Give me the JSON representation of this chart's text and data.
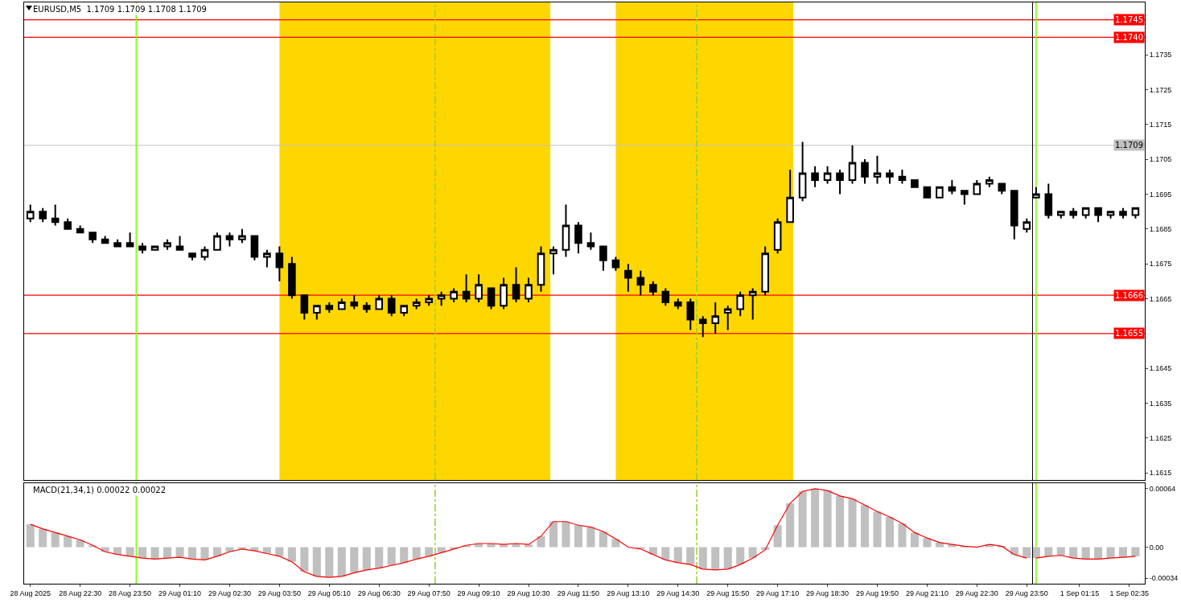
{
  "chart_data": [
    {
      "type": "candlestick",
      "title": "EURUSD,M5  1.1709 1.1709 1.1708 1.1709",
      "color": "#000000",
      "x": [
        "2025-08-28T21:10",
        "2025-08-28T21:30",
        "2025-08-28T21:50",
        "2025-08-28T22:10",
        "2025-08-28T22:30",
        "2025-08-28T22:50",
        "2025-08-28T23:10",
        "2025-08-28T23:30",
        "2025-08-28T23:50",
        "2025-08-29T00:10",
        "2025-08-29T00:30",
        "2025-08-29T00:50",
        "2025-08-29T01:10",
        "2025-08-29T01:30",
        "2025-08-29T01:50",
        "2025-08-29T02:10",
        "2025-08-29T02:30",
        "2025-08-29T02:50",
        "2025-08-29T03:10",
        "2025-08-29T03:30",
        "2025-08-29T03:50",
        "2025-08-29T04:10",
        "2025-08-29T04:30",
        "2025-08-29T04:50",
        "2025-08-29T05:10",
        "2025-08-29T05:30",
        "2025-08-29T05:50",
        "2025-08-29T06:10",
        "2025-08-29T06:30",
        "2025-08-29T06:50",
        "2025-08-29T07:10",
        "2025-08-29T07:30",
        "2025-08-29T07:50",
        "2025-08-29T08:10",
        "2025-08-29T08:30",
        "2025-08-29T08:50",
        "2025-08-29T09:10",
        "2025-08-29T09:30",
        "2025-08-29T09:50",
        "2025-08-29T10:10",
        "2025-08-29T10:30",
        "2025-08-29T10:50",
        "2025-08-29T11:10",
        "2025-08-29T11:30",
        "2025-08-29T11:50",
        "2025-08-29T12:10",
        "2025-08-29T12:30",
        "2025-08-29T12:50",
        "2025-08-29T13:10",
        "2025-08-29T13:30",
        "2025-08-29T13:50",
        "2025-08-29T14:10",
        "2025-08-29T14:30",
        "2025-08-29T14:50",
        "2025-08-29T15:10",
        "2025-08-29T15:30",
        "2025-08-29T15:50",
        "2025-08-29T16:10",
        "2025-08-29T16:30",
        "2025-08-29T16:50",
        "2025-08-29T17:10",
        "2025-08-29T17:30",
        "2025-08-29T17:50",
        "2025-08-29T18:10",
        "2025-08-29T18:30",
        "2025-08-29T18:50",
        "2025-08-29T19:10",
        "2025-08-29T19:30",
        "2025-08-29T19:50",
        "2025-08-29T20:10",
        "2025-08-29T20:30",
        "2025-08-29T20:50",
        "2025-08-29T21:10",
        "2025-08-29T21:30",
        "2025-08-29T21:50",
        "2025-08-29T22:10",
        "2025-08-29T22:30",
        "2025-08-29T22:50",
        "2025-08-29T23:10",
        "2025-08-29T23:30",
        "2025-08-29T23:50"
      ],
      "ohlc": [
        [
          1.1688,
          1.1692,
          1.1687,
          1.169
        ],
        [
          1.169,
          1.1691,
          1.1687,
          1.1688
        ],
        [
          1.1688,
          1.1692,
          1.1686,
          1.1687
        ],
        [
          1.1687,
          1.1688,
          1.1685,
          1.1685
        ],
        [
          1.1685,
          1.1686,
          1.1684,
          1.1684
        ],
        [
          1.1684,
          1.1684,
          1.1681,
          1.1682
        ],
        [
          1.1682,
          1.1683,
          1.1681,
          1.1681
        ],
        [
          1.1681,
          1.1682,
          1.168,
          1.168
        ],
        [
          1.1681,
          1.1684,
          1.168,
          1.168
        ],
        [
          1.168,
          1.1681,
          1.1678,
          1.1679
        ],
        [
          1.1679,
          1.168,
          1.1679,
          1.168
        ],
        [
          1.168,
          1.1682,
          1.1679,
          1.1681
        ],
        [
          1.168,
          1.1683,
          1.1679,
          1.1679
        ],
        [
          1.1678,
          1.1678,
          1.1676,
          1.1677
        ],
        [
          1.1677,
          1.168,
          1.1676,
          1.1679
        ],
        [
          1.1679,
          1.1684,
          1.1679,
          1.1683
        ],
        [
          1.1683,
          1.1684,
          1.168,
          1.1682
        ],
        [
          1.1682,
          1.1685,
          1.1681,
          1.1683
        ],
        [
          1.1683,
          1.1683,
          1.1676,
          1.1677
        ],
        [
          1.1677,
          1.1679,
          1.1674,
          1.1678
        ],
        [
          1.1678,
          1.168,
          1.167,
          1.1674
        ],
        [
          1.1675,
          1.1677,
          1.1665,
          1.1666
        ],
        [
          1.1666,
          1.1666,
          1.1659,
          1.1661
        ],
        [
          1.1661,
          1.1663,
          1.1659,
          1.1663
        ],
        [
          1.1663,
          1.1664,
          1.1661,
          1.1662
        ],
        [
          1.1662,
          1.1665,
          1.1662,
          1.1664
        ],
        [
          1.1664,
          1.1666,
          1.1662,
          1.1663
        ],
        [
          1.1663,
          1.1664,
          1.1661,
          1.1662
        ],
        [
          1.1662,
          1.1666,
          1.1662,
          1.1665
        ],
        [
          1.1665,
          1.1666,
          1.166,
          1.1661
        ],
        [
          1.1661,
          1.1663,
          1.166,
          1.1663
        ],
        [
          1.1663,
          1.1665,
          1.1662,
          1.1664
        ],
        [
          1.1664,
          1.1666,
          1.1663,
          1.1665
        ],
        [
          1.1665,
          1.1667,
          1.1663,
          1.1666
        ],
        [
          1.1665,
          1.1668,
          1.1664,
          1.1667
        ],
        [
          1.1667,
          1.1672,
          1.1664,
          1.1665
        ],
        [
          1.1665,
          1.1672,
          1.1664,
          1.1669
        ],
        [
          1.1668,
          1.1668,
          1.1662,
          1.1663
        ],
        [
          1.1663,
          1.1671,
          1.1662,
          1.1669
        ],
        [
          1.1669,
          1.1674,
          1.1664,
          1.1665
        ],
        [
          1.1665,
          1.1671,
          1.1664,
          1.1669
        ],
        [
          1.1669,
          1.168,
          1.1667,
          1.1678
        ],
        [
          1.1678,
          1.168,
          1.1672,
          1.1679
        ],
        [
          1.1679,
          1.1692,
          1.1677,
          1.1686
        ],
        [
          1.1686,
          1.1687,
          1.1678,
          1.1681
        ],
        [
          1.1681,
          1.1684,
          1.1679,
          1.168
        ],
        [
          1.168,
          1.168,
          1.1673,
          1.1676
        ],
        [
          1.1676,
          1.1677,
          1.1673,
          1.1674
        ],
        [
          1.1673,
          1.1675,
          1.1667,
          1.1671
        ],
        [
          1.1671,
          1.1673,
          1.1666,
          1.1669
        ],
        [
          1.1669,
          1.167,
          1.1666,
          1.1667
        ],
        [
          1.1667,
          1.1668,
          1.1663,
          1.1664
        ],
        [
          1.1664,
          1.1665,
          1.1662,
          1.1663
        ],
        [
          1.1664,
          1.1665,
          1.1656,
          1.1659
        ],
        [
          1.1659,
          1.166,
          1.1654,
          1.1658
        ],
        [
          1.1658,
          1.1664,
          1.1655,
          1.166
        ],
        [
          1.1661,
          1.1663,
          1.1656,
          1.1662
        ],
        [
          1.1662,
          1.1667,
          1.166,
          1.1666
        ],
        [
          1.1666,
          1.1668,
          1.1659,
          1.1667
        ],
        [
          1.1667,
          1.168,
          1.1666,
          1.1678
        ],
        [
          1.1679,
          1.1688,
          1.1678,
          1.1687
        ],
        [
          1.1687,
          1.1702,
          1.1687,
          1.1694
        ],
        [
          1.1694,
          1.171,
          1.1693,
          1.1701
        ],
        [
          1.1701,
          1.1703,
          1.1697,
          1.1699
        ],
        [
          1.1699,
          1.1703,
          1.1698,
          1.1701
        ],
        [
          1.1701,
          1.1702,
          1.1695,
          1.1699
        ],
        [
          1.1699,
          1.1709,
          1.1698,
          1.1704
        ],
        [
          1.1704,
          1.1705,
          1.1698,
          1.17
        ],
        [
          1.17,
          1.1706,
          1.1698,
          1.1701
        ],
        [
          1.1701,
          1.1702,
          1.1698,
          1.17
        ],
        [
          1.17,
          1.1702,
          1.1698,
          1.1699
        ],
        [
          1.1699,
          1.1699,
          1.1697,
          1.1697
        ],
        [
          1.1697,
          1.1697,
          1.1694,
          1.1694
        ],
        [
          1.1694,
          1.1697,
          1.1694,
          1.1697
        ],
        [
          1.1697,
          1.1699,
          1.1695,
          1.1696
        ],
        [
          1.1696,
          1.1696,
          1.1692,
          1.1695
        ],
        [
          1.1695,
          1.1699,
          1.1695,
          1.1698
        ],
        [
          1.1698,
          1.17,
          1.1697,
          1.1699
        ],
        [
          1.1698,
          1.1698,
          1.1695,
          1.1696
        ],
        [
          1.1696,
          1.1696,
          1.1682,
          1.1686
        ],
        [
          1.1685,
          1.1688,
          1.1684,
          1.1687
        ]
      ],
      "xlim": [
        "2025-08-28T21:00",
        "2025-08-30T00:00"
      ],
      "ylim": [
        1.1613,
        1.175
      ],
      "tick_labels": false,
      "ref_lines": [
        {
          "axis": "y",
          "value": 1.1745,
          "color": "#ff0000"
        },
        {
          "axis": "y",
          "value": 1.174,
          "color": "#ff0000"
        },
        {
          "axis": "y",
          "value": 1.1709,
          "color": "#c0c0c0"
        },
        {
          "axis": "y",
          "value": 1.1666,
          "color": "#ff0000"
        },
        {
          "axis": "y",
          "value": 1.1655,
          "color": "#ff0000"
        },
        {
          "axis": "x",
          "value": "2025-08-29T00:00",
          "color": "#7cfc00",
          "line_style": "solid"
        },
        {
          "axis": "x",
          "value": "2025-08-29T08:00",
          "color": "#9acd32",
          "line_style": "dashed"
        },
        {
          "axis": "x",
          "value": "2025-08-29T15:00",
          "color": "#9acd32",
          "line_style": "dashed"
        }
      ],
      "bands": [
        {
          "axis": "x",
          "from": "2025-08-29T03:50",
          "to": "2025-08-29T11:05",
          "color": "#ffd700"
        },
        {
          "axis": "x",
          "from": "2025-08-29T12:50",
          "to": "2025-08-29T17:35",
          "color": "#ffd700"
        }
      ]
    },
    {
      "type": "candlestick",
      "color": "#000000",
      "x": [
        "2025-09-01T00:05",
        "2025-09-01T00:25",
        "2025-09-01T00:45",
        "2025-09-01T01:05",
        "2025-09-01T01:25",
        "2025-09-01T01:45",
        "2025-09-01T02:05",
        "2025-09-01T02:25",
        "2025-09-01T02:45"
      ],
      "ohlc": [
        [
          1.1694,
          1.1697,
          1.1694,
          1.1695
        ],
        [
          1.1695,
          1.1698,
          1.1688,
          1.1689
        ],
        [
          1.1689,
          1.169,
          1.1688,
          1.169
        ],
        [
          1.169,
          1.1691,
          1.1688,
          1.1689
        ],
        [
          1.1689,
          1.1691,
          1.1688,
          1.1691
        ],
        [
          1.1691,
          1.1691,
          1.1687,
          1.1689
        ],
        [
          1.1689,
          1.169,
          1.1688,
          1.169
        ],
        [
          1.169,
          1.1691,
          1.1688,
          1.1689
        ],
        [
          1.1689,
          1.1691,
          1.1688,
          1.1691
        ]
      ],
      "xlim": [
        "2025-09-01T00:00",
        "2025-09-01T03:00"
      ],
      "ylim": [
        1.1613,
        1.175
      ],
      "yticks": [
        1.1615,
        1.1625,
        1.1635,
        1.1645,
        1.1665,
        1.1675,
        1.1685,
        1.1695,
        1.1705,
        1.1715,
        1.1725,
        1.1735
      ],
      "tick_labels": "y",
      "ref_lines": [
        {
          "axis": "y",
          "value": 1.1745,
          "label": "1.1745",
          "color": "#ff0000"
        },
        {
          "axis": "y",
          "value": 1.174,
          "label": "1.1740",
          "color": "#ff0000"
        },
        {
          "axis": "y",
          "value": 1.1709,
          "label": "1.1709",
          "color": "#c0c0c0"
        },
        {
          "axis": "y",
          "value": 1.1666,
          "label": "1.1666",
          "color": "#ff0000"
        },
        {
          "axis": "y",
          "value": 1.1655,
          "label": "1.1655",
          "color": "#ff0000"
        },
        {
          "axis": "x",
          "value": "2025-09-01T00:05",
          "color": "#7cfc00",
          "line_style": "solid"
        }
      ]
    },
    {
      "type": "bar",
      "title": "MACD(21,34,1) 0.00022 0.00022",
      "x": [
        "2025-08-28T21:10",
        "2025-08-28T21:30",
        "2025-08-28T21:50",
        "2025-08-28T22:10",
        "2025-08-28T22:30",
        "2025-08-28T22:50",
        "2025-08-28T23:10",
        "2025-08-28T23:30",
        "2025-08-28T23:50",
        "2025-08-29T00:10",
        "2025-08-29T00:30",
        "2025-08-29T00:50",
        "2025-08-29T01:10",
        "2025-08-29T01:30",
        "2025-08-29T01:50",
        "2025-08-29T02:10",
        "2025-08-29T02:30",
        "2025-08-29T02:50",
        "2025-08-29T03:10",
        "2025-08-29T03:30",
        "2025-08-29T03:50",
        "2025-08-29T04:10",
        "2025-08-29T04:30",
        "2025-08-29T04:50",
        "2025-08-29T05:10",
        "2025-08-29T05:30",
        "2025-08-29T05:50",
        "2025-08-29T06:10",
        "2025-08-29T06:30",
        "2025-08-29T06:50",
        "2025-08-29T07:10",
        "2025-08-29T07:30",
        "2025-08-29T07:50",
        "2025-08-29T08:10",
        "2025-08-29T08:30",
        "2025-08-29T08:50",
        "2025-08-29T09:10",
        "2025-08-29T09:30",
        "2025-08-29T09:50",
        "2025-08-29T10:10",
        "2025-08-29T10:30",
        "2025-08-29T10:50",
        "2025-08-29T11:10",
        "2025-08-29T11:30",
        "2025-08-29T11:50",
        "2025-08-29T12:10",
        "2025-08-29T12:30",
        "2025-08-29T12:50",
        "2025-08-29T13:10",
        "2025-08-29T13:30",
        "2025-08-29T13:50",
        "2025-08-29T14:10",
        "2025-08-29T14:30",
        "2025-08-29T14:50",
        "2025-08-29T15:10",
        "2025-08-29T15:30",
        "2025-08-29T15:50",
        "2025-08-29T16:10",
        "2025-08-29T16:30",
        "2025-08-29T16:50",
        "2025-08-29T17:10",
        "2025-08-29T17:30",
        "2025-08-29T17:50",
        "2025-08-29T18:10",
        "2025-08-29T18:30",
        "2025-08-29T18:50",
        "2025-08-29T19:10",
        "2025-08-29T19:30",
        "2025-08-29T19:50",
        "2025-08-29T20:10",
        "2025-08-29T20:30",
        "2025-08-29T20:50",
        "2025-08-29T21:10",
        "2025-08-29T21:30",
        "2025-08-29T21:50",
        "2025-08-29T22:10",
        "2025-08-29T22:30",
        "2025-08-29T22:50",
        "2025-08-29T23:10",
        "2025-08-29T23:30",
        "2025-08-29T23:50"
      ],
      "series": [
        {
          "type": "bar",
          "color": "#c0c0c0",
          "values": [
            0.00025,
            0.0002,
            0.00016,
            0.00012,
            8e-05,
            2e-05,
            -5e-05,
            -8e-05,
            -0.0001,
            -0.00012,
            -0.00013,
            -0.00012,
            -0.00011,
            -0.00013,
            -0.00014,
            -0.0001,
            -5e-05,
            -2e-05,
            -4e-05,
            -7e-05,
            -0.0001,
            -0.00016,
            -0.00027,
            -0.00032,
            -0.00033,
            -0.00032,
            -0.00028,
            -0.00025,
            -0.00023,
            -0.0002,
            -0.00017,
            -0.00013,
            -0.0001,
            -6e-05,
            -2e-05,
            2e-05,
            4e-05,
            4e-05,
            3e-05,
            4e-05,
            3e-05,
            0.00012,
            0.00028,
            0.00028,
            0.00024,
            0.00022,
            0.00017,
            9e-05,
            0,
            -2e-05,
            -8e-05,
            -0.00014,
            -0.00017,
            -0.00019,
            -0.00024,
            -0.00025,
            -0.00024,
            -0.00019,
            -0.00012,
            -3e-05,
            0.00024,
            0.00048,
            0.00061,
            0.00064,
            0.00062,
            0.00056,
            0.00053,
            0.00046,
            0.00039,
            0.00033,
            0.00026,
            0.00016,
            0.0001,
            5e-05,
            3e-05,
            1e-05,
            0,
            3e-05,
            1e-05,
            -8e-05,
            -0.00012
          ]
        },
        {
          "type": "line",
          "color": "#ff0000",
          "values": [
            0.00025,
            0.0002,
            0.00016,
            0.00012,
            8e-05,
            2e-05,
            -5e-05,
            -8e-05,
            -0.0001,
            -0.00012,
            -0.00013,
            -0.00012,
            -0.00011,
            -0.00013,
            -0.00014,
            -0.0001,
            -5e-05,
            -2e-05,
            -4e-05,
            -7e-05,
            -0.0001,
            -0.00016,
            -0.00027,
            -0.00032,
            -0.00033,
            -0.00032,
            -0.00028,
            -0.00025,
            -0.00023,
            -0.0002,
            -0.00017,
            -0.00013,
            -0.0001,
            -6e-05,
            -2e-05,
            2e-05,
            4e-05,
            4e-05,
            3e-05,
            4e-05,
            3e-05,
            0.00012,
            0.00028,
            0.00028,
            0.00024,
            0.00022,
            0.00017,
            9e-05,
            0,
            -2e-05,
            -8e-05,
            -0.00014,
            -0.00017,
            -0.00019,
            -0.00024,
            -0.00025,
            -0.00024,
            -0.00019,
            -0.00012,
            -3e-05,
            0.00024,
            0.00048,
            0.00061,
            0.00064,
            0.00062,
            0.00056,
            0.00053,
            0.00046,
            0.00039,
            0.00033,
            0.00026,
            0.00016,
            0.0001,
            5e-05,
            3e-05,
            1e-05,
            0,
            3e-05,
            1e-05,
            -8e-05,
            -0.00012
          ]
        }
      ],
      "xlim": [
        "2025-08-28T21:00",
        "2025-08-30T00:00"
      ],
      "xticks": [
        {
          "value": "2025-08-28T21:10",
          "label": "28 Aug 2025"
        },
        {
          "value": "2025-08-28T22:30",
          "label": "28 Aug 22:30"
        },
        {
          "value": "2025-08-28T23:50",
          "label": "28 Aug 23:50"
        },
        {
          "value": "2025-08-29T01:10",
          "label": "29 Aug 01:10"
        },
        {
          "value": "2025-08-29T02:30",
          "label": "29 Aug 02:30"
        },
        {
          "value": "2025-08-29T03:50",
          "label": "29 Aug 03:50"
        },
        {
          "value": "2025-08-29T05:10",
          "label": "29 Aug 05:10"
        },
        {
          "value": "2025-08-29T06:30",
          "label": "29 Aug 06:30"
        },
        {
          "value": "2025-08-29T07:50",
          "label": "29 Aug 07:50"
        },
        {
          "value": "2025-08-29T09:10",
          "label": "29 Aug 09:10"
        },
        {
          "value": "2025-08-29T10:30",
          "label": "29 Aug 10:30"
        },
        {
          "value": "2025-08-29T11:50",
          "label": "29 Aug 11:50"
        },
        {
          "value": "2025-08-29T13:10",
          "label": "29 Aug 13:10"
        },
        {
          "value": "2025-08-29T14:30",
          "label": "29 Aug 14:30"
        },
        {
          "value": "2025-08-29T15:50",
          "label": "29 Aug 15:50"
        },
        {
          "value": "2025-08-29T17:10",
          "label": "29 Aug 17:10"
        },
        {
          "value": "2025-08-29T18:30",
          "label": "29 Aug 18:30"
        },
        {
          "value": "2025-08-29T19:50",
          "label": "29 Aug 19:50"
        },
        {
          "value": "2025-08-29T21:10",
          "label": "29 Aug 21:10"
        },
        {
          "value": "2025-08-29T22:30",
          "label": "29 Aug 22:30"
        },
        {
          "value": "2025-08-29T23:50",
          "label": "29 Aug 23:50"
        }
      ],
      "ylim": [
        -0.0004,
        0.0007
      ],
      "tick_labels": "x",
      "ref_lines": [
        {
          "axis": "x",
          "value": "2025-08-29T00:00",
          "color": "#7cfc00",
          "line_style": "solid"
        },
        {
          "axis": "x",
          "value": "2025-08-29T08:00",
          "color": "#9acd32",
          "line_style": "dashed"
        },
        {
          "axis": "x",
          "value": "2025-08-29T15:00",
          "color": "#9acd32",
          "line_style": "dashed"
        }
      ]
    },
    {
      "type": "bar",
      "x": [
        "2025-09-01T00:05",
        "2025-09-01T00:25",
        "2025-09-01T00:45",
        "2025-09-01T01:05",
        "2025-09-01T01:25",
        "2025-09-01T01:45",
        "2025-09-01T02:05",
        "2025-09-01T02:25",
        "2025-09-01T02:45"
      ],
      "series": [
        {
          "type": "bar",
          "color": "#c0c0c0",
          "values": [
            -0.00012,
            -0.0001,
            -9e-05,
            -0.00012,
            -0.00013,
            -0.00013,
            -0.00012,
            -0.00011,
            -0.0001
          ]
        },
        {
          "type": "line",
          "color": "#ff0000",
          "values": [
            -0.00012,
            -0.0001,
            -9e-05,
            -0.00012,
            -0.00013,
            -0.00013,
            -0.00012,
            -0.00011,
            -0.0001
          ]
        }
      ],
      "xlim": [
        "2025-09-01T00:00",
        "2025-09-01T03:00"
      ],
      "xticks": [
        {
          "value": "2025-09-01T01:15",
          "label": "1 Sep 01:15"
        },
        {
          "value": "2025-09-01T02:35",
          "label": "1 Sep 02:35"
        }
      ],
      "ylim": [
        -0.0004,
        0.0007
      ],
      "yticks": [
        -0.00034,
        {
          "value": 0,
          "label": "0.00"
        },
        0.00064
      ],
      "ref_lines": [
        {
          "axis": "x",
          "value": "2025-09-01T00:05",
          "color": "#7cfc00",
          "line_style": "solid"
        }
      ]
    }
  ]
}
